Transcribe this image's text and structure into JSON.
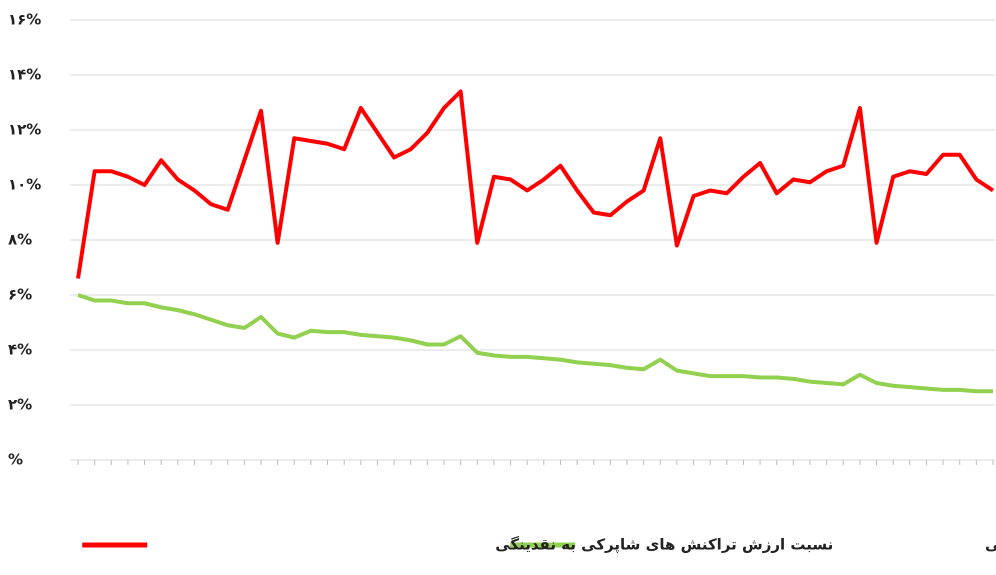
{
  "chart_data": {
    "type": "line",
    "categories": [
      null,
      null,
      null,
      null,
      null,
      null,
      null,
      null,
      null,
      null,
      null,
      null,
      null,
      null,
      null,
      null,
      null,
      null,
      null,
      null,
      null,
      null,
      null,
      null,
      null,
      null,
      null,
      null,
      null,
      null,
      null,
      null,
      null,
      null,
      null,
      null,
      null,
      null,
      null,
      null,
      null,
      null,
      null,
      null,
      null,
      null,
      null,
      null,
      null,
      null,
      null,
      null,
      null,
      null,
      null,
      null
    ],
    "series": [
      {
        "name": "نسبت اسکناس و مسکوک در دست اشخاص به نقدینگی",
        "color": "#92d050",
        "values": [
          6.0,
          5.8,
          5.8,
          5.7,
          5.7,
          5.55,
          5.45,
          5.3,
          5.1,
          4.9,
          4.8,
          5.2,
          4.6,
          4.45,
          4.7,
          4.65,
          4.65,
          4.55,
          4.5,
          4.45,
          4.35,
          4.2,
          4.2,
          4.5,
          3.9,
          3.8,
          3.75,
          3.75,
          3.7,
          3.65,
          3.55,
          3.5,
          3.45,
          3.35,
          3.3,
          3.65,
          3.25,
          3.15,
          3.05,
          3.05,
          3.05,
          3.0,
          3.0,
          2.95,
          2.85,
          2.8,
          2.75,
          3.1,
          2.8,
          2.7,
          2.65,
          2.6,
          2.55,
          2.55,
          2.5,
          2.5
        ]
      },
      {
        "name": "نسبت ارزش تراکنش های شاپرکی به نقدینگی",
        "color": "#ff0000",
        "values": [
          6.6,
          10.5,
          10.5,
          10.3,
          10.0,
          10.9,
          10.2,
          9.8,
          9.3,
          9.1,
          10.9,
          12.7,
          7.9,
          11.7,
          11.6,
          11.5,
          11.3,
          12.8,
          11.9,
          11.0,
          11.3,
          11.9,
          12.8,
          13.4,
          7.9,
          10.3,
          10.2,
          9.8,
          10.2,
          10.7,
          9.8,
          9.0,
          8.9,
          9.4,
          9.8,
          11.7,
          7.8,
          9.6,
          9.8,
          9.7,
          10.3,
          10.8,
          9.7,
          10.2,
          10.1,
          10.5,
          10.7,
          12.8,
          7.9,
          10.3,
          10.5,
          10.4,
          11.1,
          11.1,
          10.2,
          9.8
        ]
      }
    ],
    "ylim": [
      0,
      16
    ],
    "yticks": [
      {
        "value": 0,
        "label": "%"
      },
      {
        "value": 2,
        "label": "۲%"
      },
      {
        "value": 4,
        "label": "۴%"
      },
      {
        "value": 6,
        "label": "۶%"
      },
      {
        "value": 8,
        "label": "۸%"
      },
      {
        "value": 10,
        "label": "۱۰%"
      },
      {
        "value": 12,
        "label": "۱۲%"
      },
      {
        "value": 14,
        "label": "۱۴%"
      },
      {
        "value": 16,
        "label": "۱۶%"
      }
    ],
    "grid": true,
    "legend": "bottom"
  }
}
